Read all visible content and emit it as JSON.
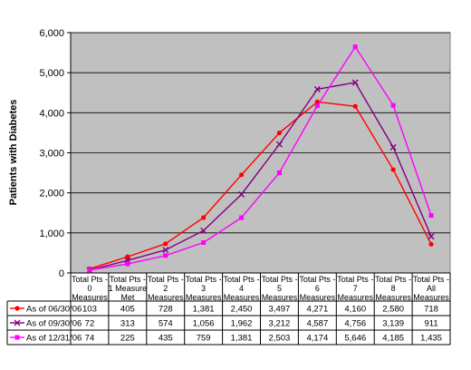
{
  "chart_data": {
    "type": "line",
    "title": "",
    "xlabel": "",
    "ylabel": "Patients with Diabetes",
    "ylim": [
      0,
      6000
    ],
    "yticks": [
      0,
      1000,
      2000,
      3000,
      4000,
      5000,
      6000
    ],
    "ytick_labels": [
      "0",
      "1,000",
      "2,000",
      "3,000",
      "4,000",
      "5,000",
      "6,000"
    ],
    "grid": true,
    "plot_background": "#c0c0c0",
    "categories": [
      [
        "Total Pts -",
        "0",
        "Measures"
      ],
      [
        "Total Pts -",
        "1 Measure",
        "Met"
      ],
      [
        "Total Pts -",
        "2",
        "Measures"
      ],
      [
        "Total Pts -",
        "3",
        "Measures"
      ],
      [
        "Total Pts -",
        "4",
        "Measures"
      ],
      [
        "Total Pts -",
        "5",
        "Measures"
      ],
      [
        "Total Pts -",
        "6",
        "Measures"
      ],
      [
        "Total Pts -",
        "7",
        "Measures"
      ],
      [
        "Total Pts -",
        "8",
        "Measures"
      ],
      [
        "Total Pts -",
        "All",
        "Measures"
      ]
    ],
    "legend_placement": "data-table-below",
    "series": [
      {
        "name": "As of 06/30/06",
        "color": "#ff0000",
        "marker": "circle",
        "values": [
          103,
          405,
          728,
          1381,
          2450,
          3497,
          4271,
          4160,
          2580,
          718
        ],
        "labels": [
          "103",
          "405",
          "728",
          "1,381",
          "2,450",
          "3,497",
          "4,271",
          "4,160",
          "2,580",
          "718"
        ]
      },
      {
        "name": "As of 09/30/06",
        "color": "#800080",
        "marker": "x",
        "values": [
          72,
          313,
          574,
          1056,
          1962,
          3212,
          4587,
          4756,
          3139,
          911
        ],
        "labels": [
          "72",
          "313",
          "574",
          "1,056",
          "1,962",
          "3,212",
          "4,587",
          "4,756",
          "3,139",
          "911"
        ]
      },
      {
        "name": "As of 12/31/06",
        "color": "#ff00ff",
        "marker": "square",
        "values": [
          74,
          225,
          435,
          759,
          1381,
          2503,
          4174,
          5646,
          4185,
          1435
        ],
        "labels": [
          "74",
          "225",
          "435",
          "759",
          "1,381",
          "2,503",
          "4,174",
          "5,646",
          "4,185",
          "1,435"
        ]
      }
    ]
  }
}
